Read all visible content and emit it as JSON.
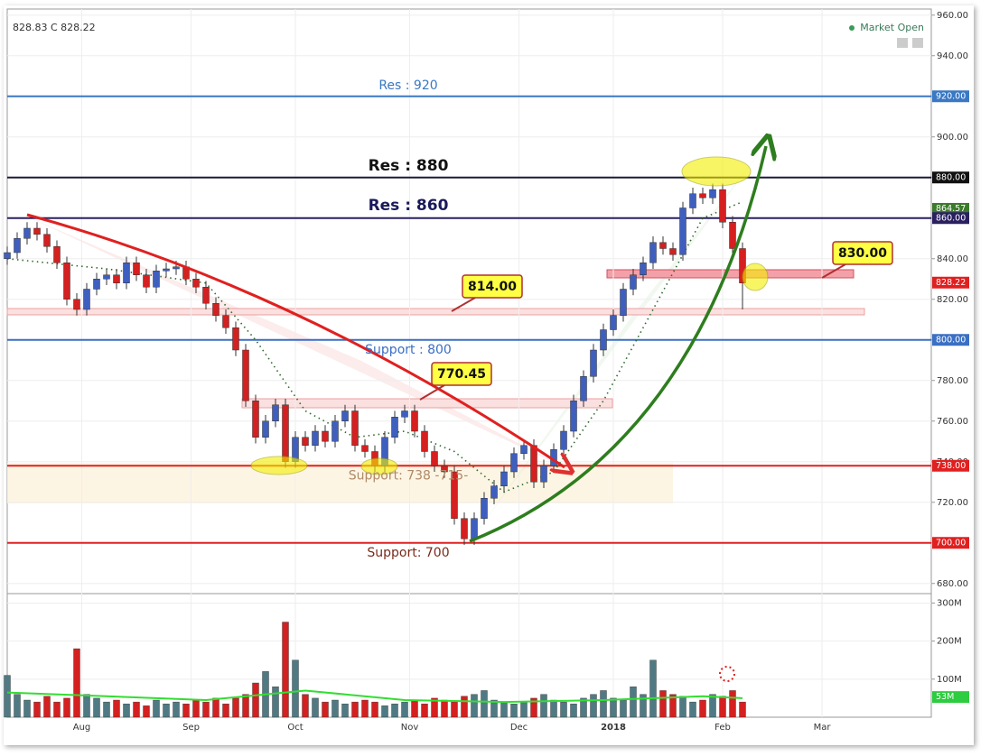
{
  "header": {
    "quote": "828.83 C 828.22",
    "status": "Market Open"
  },
  "chart_data": [
    {
      "type": "candlestick",
      "x": [
        0,
        2,
        4,
        6,
        8,
        10,
        12,
        14,
        16,
        18,
        20,
        22,
        24,
        26,
        28,
        30,
        32,
        34,
        36,
        38,
        40,
        42,
        44,
        46,
        48,
        50,
        52,
        54,
        56,
        58,
        60,
        62,
        64,
        66,
        68,
        70,
        72,
        74,
        76,
        78,
        80,
        82,
        84,
        86,
        88,
        90,
        92,
        94,
        96,
        98,
        100,
        102,
        104,
        106,
        108,
        110,
        112,
        114,
        116,
        118,
        120,
        122,
        124,
        126,
        128,
        130,
        132,
        134,
        136,
        138,
        140,
        142,
        144,
        146,
        148
      ],
      "open": [
        840,
        843,
        850,
        855,
        852,
        846,
        838,
        820,
        815,
        825,
        830,
        832,
        828,
        838,
        832,
        826,
        834,
        835,
        836,
        830,
        826,
        818,
        812,
        806,
        795,
        770,
        752,
        760,
        768,
        740,
        752,
        748,
        755,
        750,
        760,
        765,
        748,
        745,
        738,
        752,
        762,
        765,
        755,
        745,
        738,
        735,
        712,
        702,
        712,
        722,
        728,
        735,
        744,
        748,
        730,
        738,
        746,
        755,
        770,
        782,
        795,
        805,
        812,
        825,
        832,
        838,
        848,
        845,
        842,
        865,
        872,
        870,
        874,
        858,
        845
      ],
      "high": [
        846,
        853,
        858,
        858,
        855,
        849,
        841,
        823,
        828,
        833,
        835,
        835,
        841,
        841,
        835,
        837,
        838,
        839,
        839,
        833,
        829,
        821,
        815,
        809,
        798,
        773,
        763,
        771,
        771,
        755,
        755,
        758,
        758,
        763,
        768,
        768,
        751,
        748,
        755,
        765,
        768,
        768,
        758,
        748,
        741,
        738,
        715,
        715,
        725,
        731,
        738,
        747,
        751,
        751,
        741,
        749,
        758,
        773,
        785,
        798,
        808,
        815,
        828,
        835,
        841,
        851,
        851,
        848,
        868,
        875,
        875,
        877,
        877,
        861,
        848
      ],
      "low": [
        837,
        840,
        847,
        849,
        843,
        835,
        817,
        812,
        812,
        822,
        827,
        825,
        825,
        829,
        823,
        823,
        831,
        832,
        827,
        823,
        815,
        809,
        803,
        792,
        767,
        749,
        749,
        757,
        737,
        737,
        745,
        745,
        747,
        747,
        757,
        745,
        742,
        735,
        735,
        749,
        759,
        752,
        742,
        735,
        732,
        709,
        699,
        699,
        709,
        719,
        725,
        732,
        741,
        727,
        727,
        735,
        743,
        752,
        767,
        779,
        792,
        802,
        809,
        822,
        829,
        835,
        842,
        839,
        839,
        862,
        867,
        867,
        855,
        842,
        815
      ],
      "close": [
        843,
        850,
        855,
        852,
        846,
        838,
        820,
        815,
        825,
        830,
        832,
        828,
        838,
        832,
        826,
        834,
        835,
        836,
        830,
        826,
        818,
        812,
        806,
        795,
        770,
        752,
        760,
        768,
        740,
        752,
        748,
        755,
        750,
        760,
        765,
        748,
        745,
        738,
        752,
        762,
        765,
        755,
        745,
        738,
        735,
        712,
        702,
        712,
        722,
        728,
        735,
        744,
        748,
        730,
        738,
        746,
        755,
        770,
        782,
        795,
        805,
        812,
        825,
        832,
        838,
        848,
        845,
        842,
        865,
        872,
        870,
        874,
        858,
        845,
        828
      ],
      "up_color": "#3f5fbf",
      "down_color": "#d42020",
      "ma": {
        "x": [
          0,
          20,
          40,
          50,
          60,
          70,
          80,
          90,
          100,
          110,
          120,
          130,
          140,
          148
        ],
        "values": [
          840,
          835,
          828,
          800,
          765,
          752,
          755,
          745,
          725,
          735,
          770,
          815,
          860,
          868
        ],
        "color": "#2d6a2d"
      },
      "xlim": [
        0,
        186
      ],
      "xticks": [
        {
          "value": 15,
          "label": "Aug"
        },
        {
          "value": 37,
          "label": "Sep"
        },
        {
          "value": 58,
          "label": "Oct"
        },
        {
          "value": 81,
          "label": "Nov"
        },
        {
          "value": 103,
          "label": "Dec"
        },
        {
          "value": 122,
          "label": "2018"
        },
        {
          "value": 144,
          "label": "Feb"
        },
        {
          "value": 164,
          "label": "Mar"
        }
      ],
      "ylim": [
        675,
        963
      ],
      "yticks": [
        {
          "value": 680,
          "label": "680.00"
        },
        {
          "value": 700,
          "label": "700.00"
        },
        {
          "value": 720,
          "label": "720.00"
        },
        {
          "value": 740,
          "label": "740.00"
        },
        {
          "value": 760,
          "label": "760.00"
        },
        {
          "value": 780,
          "label": "780.00"
        },
        {
          "value": 800,
          "label": "800.00"
        },
        {
          "value": 820,
          "label": "820.00"
        },
        {
          "value": 840,
          "label": "840.00"
        },
        {
          "value": 860,
          "label": "860.00"
        },
        {
          "value": 880,
          "label": "880.00"
        },
        {
          "value": 900,
          "label": "900.00"
        },
        {
          "value": 920,
          "label": "920.00"
        },
        {
          "value": 940,
          "label": "940.00"
        },
        {
          "value": 960,
          "label": "960.00"
        }
      ],
      "grid": true,
      "levels": [
        {
          "value": 920,
          "label": "Res : 920",
          "color": "#3a78c3"
        },
        {
          "value": 880,
          "label": "Res : 880",
          "color": "#1a1a3a"
        },
        {
          "value": 860,
          "label": "Res : 860",
          "color": "#2a2060"
        },
        {
          "value": 800,
          "label": "Support  : 800",
          "color": "#3a6fc3"
        },
        {
          "value": 738,
          "label": "Support: 738 -715-",
          "color": "#e02020"
        },
        {
          "value": 700,
          "label": "Support: 700",
          "color": "#e02020"
        }
      ],
      "price_tags": [
        {
          "value": 920,
          "label": "920.00",
          "color": "#3a78c3"
        },
        {
          "value": 880,
          "label": "880.00",
          "color": "#111111"
        },
        {
          "value": 864.57,
          "label": "864.57",
          "color": "#3c7a2c"
        },
        {
          "value": 860,
          "label": "860.00",
          "color": "#2a2060"
        },
        {
          "value": 828.22,
          "label": "828.22",
          "color": "#e02020"
        },
        {
          "value": 800,
          "label": "800.00",
          "color": "#3a6fc3"
        },
        {
          "value": 738,
          "label": "738.00",
          "color": "#e02020"
        },
        {
          "value": 700,
          "label": "700.00",
          "color": "#e02020"
        }
      ],
      "callouts": [
        {
          "value": 814,
          "label": "814.00"
        },
        {
          "value": 770.45,
          "label": "770.45"
        },
        {
          "value": 830,
          "label": "830.00"
        }
      ]
    },
    {
      "type": "bar",
      "x": [
        0,
        2,
        4,
        6,
        8,
        10,
        12,
        14,
        16,
        18,
        20,
        22,
        24,
        26,
        28,
        30,
        32,
        34,
        36,
        38,
        40,
        42,
        44,
        46,
        48,
        50,
        52,
        54,
        56,
        58,
        60,
        62,
        64,
        66,
        68,
        70,
        72,
        74,
        76,
        78,
        80,
        82,
        84,
        86,
        88,
        90,
        92,
        94,
        96,
        98,
        100,
        102,
        104,
        106,
        108,
        110,
        112,
        114,
        116,
        118,
        120,
        122,
        124,
        126,
        128,
        130,
        132,
        134,
        136,
        138,
        140,
        142,
        144,
        146,
        148
      ],
      "values": [
        110,
        60,
        45,
        40,
        55,
        40,
        50,
        180,
        60,
        50,
        40,
        45,
        35,
        40,
        30,
        45,
        35,
        40,
        35,
        45,
        40,
        50,
        35,
        50,
        60,
        90,
        120,
        80,
        250,
        150,
        60,
        50,
        40,
        45,
        35,
        40,
        45,
        40,
        30,
        35,
        40,
        45,
        35,
        50,
        45,
        40,
        55,
        60,
        70,
        45,
        40,
        35,
        40,
        50,
        60,
        45,
        40,
        35,
        50,
        60,
        70,
        50,
        45,
        80,
        60,
        150,
        70,
        60,
        55,
        40,
        45,
        60,
        55,
        70,
        40
      ],
      "ma": {
        "x": [
          0,
          20,
          40,
          60,
          80,
          100,
          120,
          140,
          148
        ],
        "values": [
          65,
          55,
          45,
          70,
          45,
          40,
          45,
          55,
          50
        ],
        "color": "#33dd33"
      },
      "ylim": [
        0,
        320
      ],
      "yticks": [
        {
          "value": 100,
          "label": "100M"
        },
        {
          "value": 200,
          "label": "200M"
        },
        {
          "value": 300,
          "label": "300M"
        }
      ],
      "price_tags": [
        {
          "value": 53,
          "label": "53M",
          "color": "#2ecc40"
        }
      ]
    }
  ]
}
